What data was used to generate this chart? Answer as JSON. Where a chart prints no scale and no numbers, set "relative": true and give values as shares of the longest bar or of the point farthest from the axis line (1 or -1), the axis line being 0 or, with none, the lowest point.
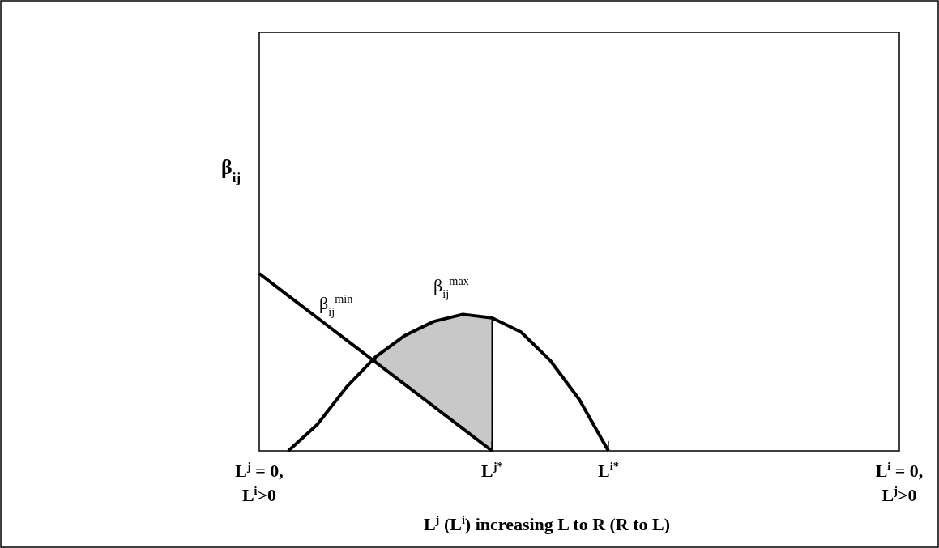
{
  "chart_data": {
    "type": "line",
    "relative": true,
    "ylabel": "β$_{ij}$",
    "xlabel": "L$^{j}$ (L$^{i}$) increasing L to R (R to L)",
    "categories": [
      "L$^{j}$ = 0,\nL$^{i}$>0",
      null,
      null,
      null,
      null,
      null,
      null,
      null,
      "L$^{j*}$",
      null,
      null,
      null,
      "L$^{i*}$",
      null,
      null,
      null,
      null,
      null,
      null,
      null,
      null,
      null,
      "L$^{i}$ = 0,\nL$^{j}$>0"
    ],
    "marker": "none",
    "line_style": "solid",
    "series": [
      {
        "color": "#000000",
        "values": [
          1,
          0.875,
          0.75,
          0.625,
          0.5,
          0.375,
          0.25,
          0.125,
          0,
          null,
          null,
          null,
          null,
          null,
          null,
          null,
          null,
          null,
          null,
          null,
          null,
          null,
          null
        ]
      },
      {
        "type": "area",
        "color": "#c8c8c8",
        "values": [
          null,
          null,
          null,
          null,
          0.53,
          0.65,
          0.73,
          0.77,
          0.75,
          null,
          null,
          null,
          null,
          null,
          null,
          null,
          null,
          null,
          null,
          null,
          null,
          null,
          null
        ]
      },
      {
        "color": "#000000",
        "values": [
          null,
          0,
          0.15,
          0.36,
          0.53,
          0.65,
          0.73,
          0.77,
          0.75,
          0.67,
          0.51,
          0.29,
          0,
          null,
          null,
          null,
          null,
          null,
          null,
          null,
          null,
          null,
          null
        ]
      }
    ],
    "annotations": [
      "β$_{ij}$$^{max}$",
      "β$_{ij}$$^{min}$"
    ]
  }
}
